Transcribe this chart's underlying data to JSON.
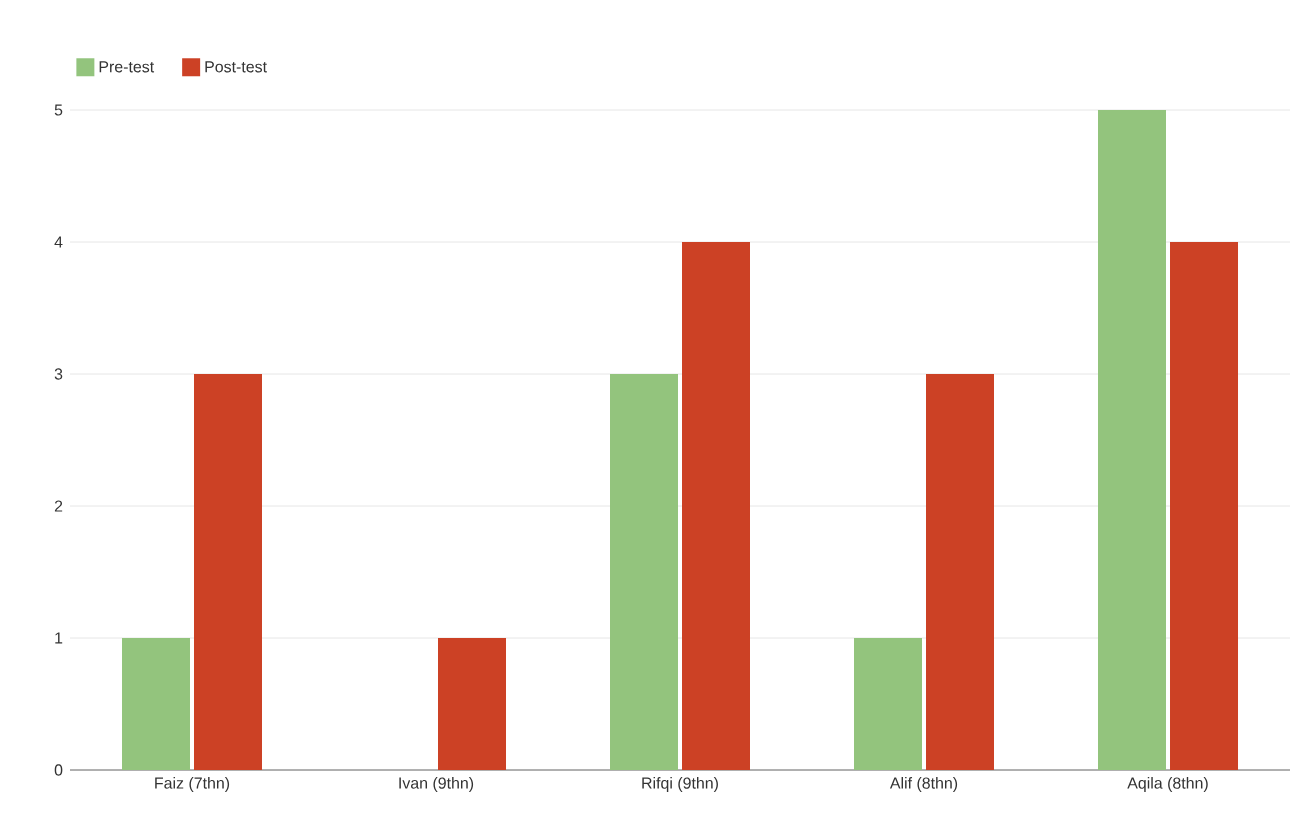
{
  "chart_data": {
    "type": "bar",
    "categories": [
      "Faiz (7thn)",
      "Ivan (9thn)",
      "Rifqi (9thn)",
      "Alif (8thn)",
      "Aqila (8thn)"
    ],
    "series": [
      {
        "name": "Pre-test",
        "color": "#93c47d",
        "values": [
          1,
          0,
          3,
          1,
          5
        ]
      },
      {
        "name": "Post-test",
        "color": "#cc4125",
        "values": [
          3,
          1,
          4,
          3,
          4
        ]
      }
    ],
    "ylim": [
      0,
      5
    ],
    "yticks": [
      0,
      1,
      2,
      3,
      4,
      5
    ],
    "grid": "y",
    "legend": "top left"
  }
}
